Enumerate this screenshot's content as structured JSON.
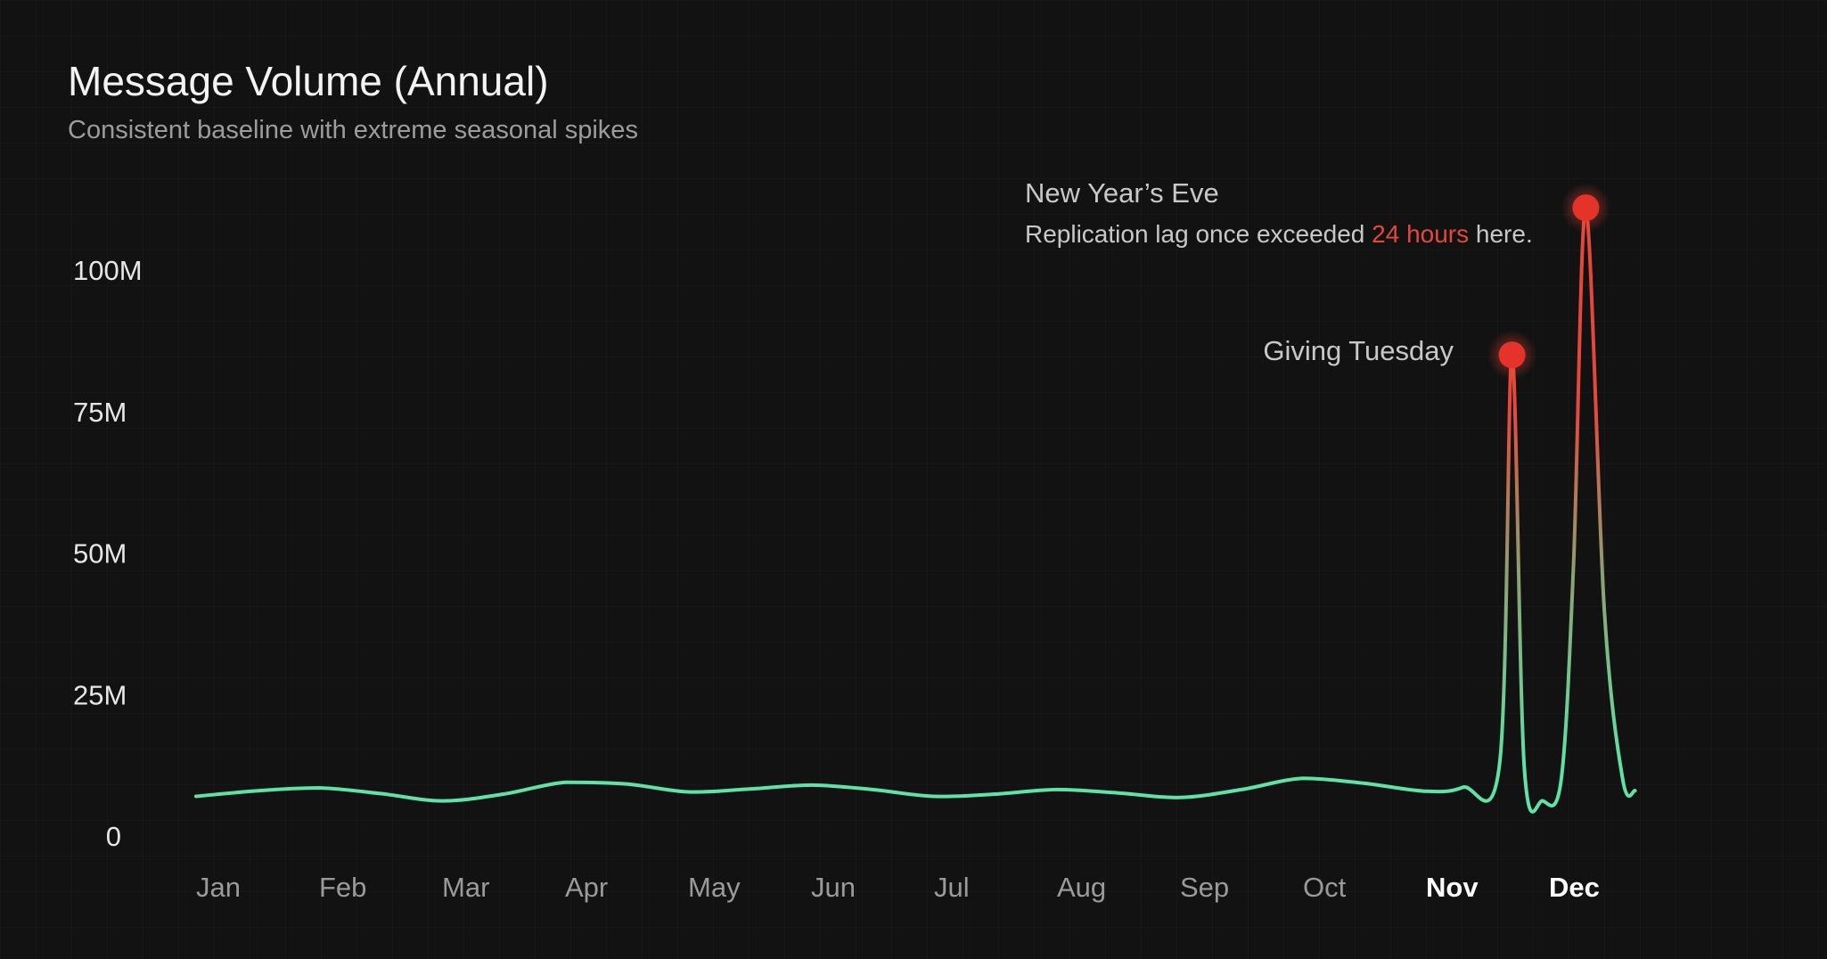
{
  "header": {
    "title": "Message Volume (Annual)",
    "subtitle": "Consistent baseline with extreme seasonal spikes"
  },
  "colors": {
    "baseline_line": "#5ee2a6",
    "spike_line": "#e5483b",
    "spike_marker": "#e5332a",
    "highlight_text": "#e5483b",
    "background": "#121212"
  },
  "annotations": {
    "new_years_eve": {
      "title": "New Year’s Eve",
      "note_prefix": "Replication lag once exceeded ",
      "note_highlight": "24 hours",
      "note_suffix": " here."
    },
    "giving_tuesday": {
      "title": "Giving Tuesday"
    }
  },
  "chart_data": {
    "type": "line",
    "title": "Message Volume (Annual)",
    "subtitle": "Consistent baseline with extreme seasonal spikes",
    "xlabel": "",
    "ylabel": "",
    "x_ticks": [
      "Jan",
      "Feb",
      "Mar",
      "Apr",
      "May",
      "Jun",
      "Jul",
      "Aug",
      "Sep",
      "Oct",
      "Nov",
      "Dec"
    ],
    "highlighted_ticks": [
      "Nov",
      "Dec"
    ],
    "y_ticks": [
      {
        "value": 0,
        "label": "0"
      },
      {
        "value": 25000000,
        "label": "25M"
      },
      {
        "value": 50000000,
        "label": "50M"
      },
      {
        "value": 75000000,
        "label": "75M"
      },
      {
        "value": 100000000,
        "label": "100M"
      }
    ],
    "ylim": [
      0,
      112000000
    ],
    "xlim": [
      0,
      11.7
    ],
    "grid": false,
    "series": [
      {
        "x": [
          0,
          0.5,
          1,
          1.5,
          2,
          2.5,
          3,
          3.5,
          4,
          4.5,
          5,
          5.5,
          6,
          6.5,
          7,
          7.5,
          8,
          8.5,
          9,
          9.5,
          10,
          10.3,
          10.6,
          10.7,
          10.8,
          10.95,
          11.1,
          11.2,
          11.3,
          11.45,
          11.6,
          11.7
        ],
        "y": [
          7000000,
          8000000,
          8500000,
          7500000,
          6200000,
          7400000,
          9500000,
          9200000,
          7800000,
          8300000,
          9000000,
          8200000,
          7000000,
          7400000,
          8200000,
          7600000,
          6800000,
          8200000,
          10200000,
          9300000,
          7900000,
          8600000,
          13000000,
          85000000,
          12000000,
          6200000,
          10000000,
          48000000,
          111000000,
          40000000,
          10000000,
          8000000
        ]
      }
    ],
    "markers": [
      {
        "x": 10.7,
        "y": 85000000,
        "label": "Giving Tuesday"
      },
      {
        "x": 11.3,
        "y": 111000000,
        "label": "New Year’s Eve"
      }
    ]
  }
}
